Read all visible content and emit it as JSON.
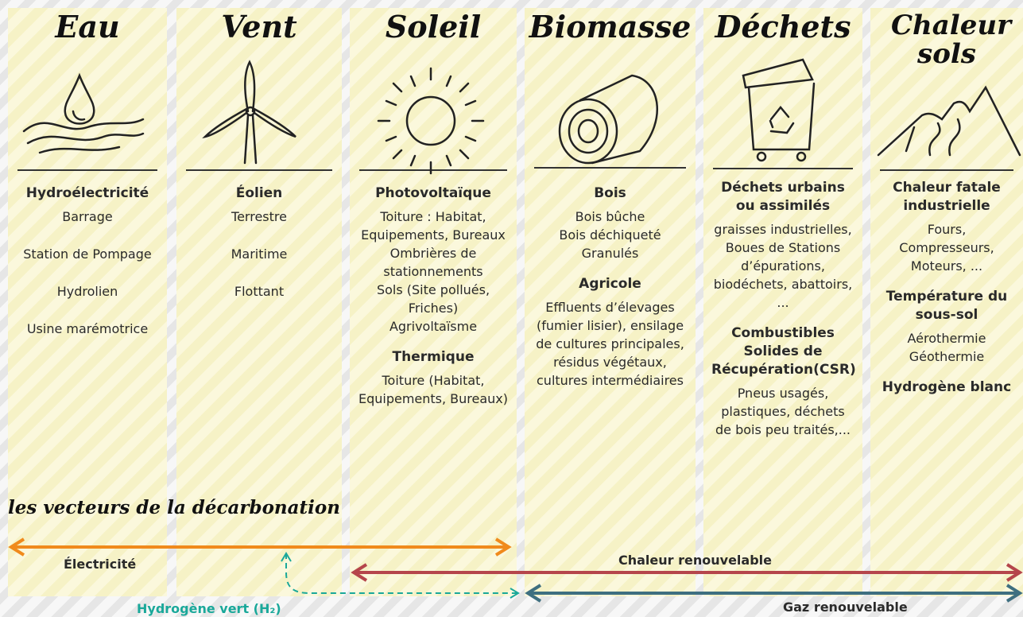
{
  "columns": [
    {
      "title": "Eau",
      "sections": [
        {
          "heading": "Hydroélectricité",
          "items": [
            "Barrage",
            "Station de Pompage",
            "Hydrolien",
            "Usine marémotrice"
          ]
        }
      ]
    },
    {
      "title": "Vent",
      "sections": [
        {
          "heading": "Éolien",
          "items": [
            "Terrestre",
            "Maritime",
            "Flottant"
          ]
        }
      ]
    },
    {
      "title": "Soleil",
      "sections": [
        {
          "heading": "Photovoltaïque",
          "items": [
            "Toiture : Habitat, Equipements, Bureaux",
            "Ombrières de stationnements",
            "Sols (Site pollués, Friches)",
            "Agrivoltaïsme"
          ]
        },
        {
          "heading": "Thermique",
          "items": [
            "Toiture (Habitat, Equipements, Bureaux)"
          ]
        }
      ]
    },
    {
      "title": "Biomasse",
      "sections": [
        {
          "heading": "Bois",
          "items": [
            "Bois bûche",
            "Bois déchiqueté",
            "Granulés"
          ]
        },
        {
          "heading": "Agricole",
          "items": [
            "Effluents d’élevages (fumier lisier), ensilage de cultures principales, résidus végétaux, cultures intermédiaires"
          ]
        }
      ]
    },
    {
      "title": "Déchets",
      "sections": [
        {
          "heading": "Déchets urbains ou assimilés",
          "items": [
            "graisses industrielles, Boues de Stations d’épurations, biodéchets, abattoirs, ..."
          ]
        },
        {
          "heading": "Combustibles Solides de Récupération(CSR)",
          "items": [
            "Pneus usagés, plastiques, déchets de bois peu traités,..."
          ]
        }
      ]
    },
    {
      "title": "Chaleur sols",
      "sections": [
        {
          "heading": "Chaleur fatale industrielle",
          "items": [
            "Fours, Compresseurs, Moteurs, ..."
          ]
        },
        {
          "heading": "Température du sous-sol",
          "items": [
            "Aérothermie",
            "Géothermie"
          ]
        },
        {
          "heading": "Hydrogène blanc",
          "items": []
        }
      ]
    }
  ],
  "vectors": {
    "title": "les vecteurs de la décarbonation",
    "electricity": "Électricité",
    "heat": "Chaleur renouvelable",
    "gas": "Gaz renouvelable",
    "hydrogen": "Hydrogène vert (H₂)"
  }
}
